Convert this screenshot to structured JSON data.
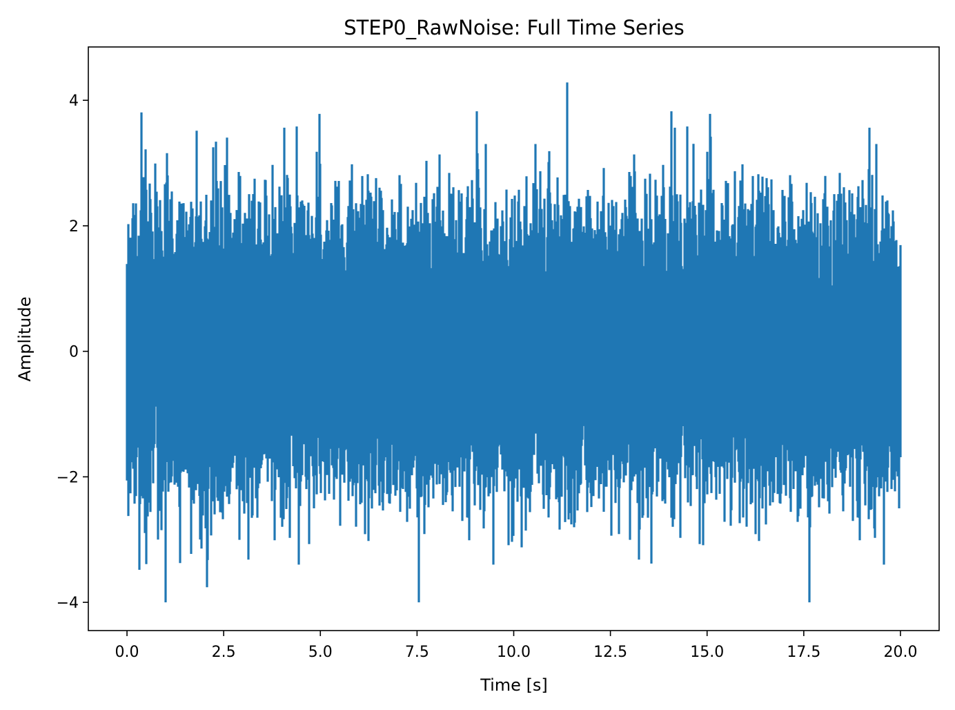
{
  "chart_data": {
    "type": "line",
    "title": "STEP0_RawNoise: Full Time Series",
    "xlabel": "Time [s]",
    "ylabel": "Amplitude",
    "xlim": [
      -1.0,
      21.0
    ],
    "ylim": [
      -4.45,
      4.85
    ],
    "x_ticks": [
      0.0,
      2.5,
      5.0,
      7.5,
      10.0,
      12.5,
      15.0,
      17.5,
      20.0
    ],
    "x_tick_labels": [
      "0.0",
      "2.5",
      "5.0",
      "7.5",
      "10.0",
      "12.5",
      "15.0",
      "17.5",
      "20.0"
    ],
    "y_ticks": [
      -4,
      -2,
      0,
      2,
      4
    ],
    "y_tick_labels": [
      "−4",
      "−2",
      "0",
      "2",
      "4"
    ],
    "grid": false,
    "legend": "none",
    "series": [
      {
        "color": "#1f77b4",
        "x_range": [
          0.0,
          20.0
        ],
        "sample_count": 20000,
        "distribution": "gaussian white noise",
        "mean": 0.0,
        "std": 1.0,
        "approx_min": -4.0,
        "approx_max": 4.4
      }
    ]
  }
}
